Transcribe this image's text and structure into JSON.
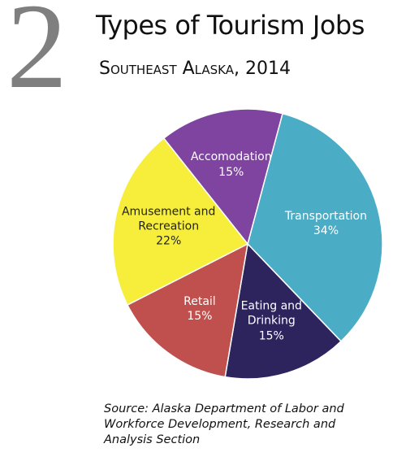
{
  "chart_data": {
    "type": "pie",
    "figure_number": "2",
    "title": "Types of Tourism Jobs",
    "subtitle": "Southeast Alaska, 2014",
    "categories": [
      "Transportation",
      "Eating and Drinking",
      "Retail",
      "Amusement and Recreation",
      "Accomodation"
    ],
    "values": [
      34,
      15,
      15,
      22,
      15
    ],
    "value_labels": [
      "34%",
      "15%",
      "15%",
      "22%",
      "15%"
    ],
    "colors": [
      "#4bacc6",
      "#2d245e",
      "#c0504d",
      "#f6ee3b",
      "#7e44a0"
    ],
    "source": "Source: Alaska Department of Labor and Workforce Development, Research and Analysis Section"
  }
}
